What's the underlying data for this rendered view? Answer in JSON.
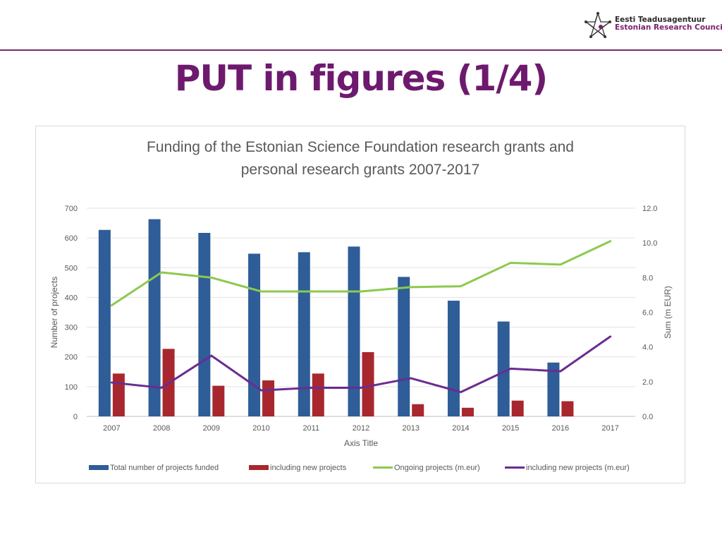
{
  "logo": {
    "line1": "Eesti Teadusagentuur",
    "line2": "Estonian Research Council"
  },
  "page_title": "PUT in figures (1/4)",
  "chart_data": {
    "type": "bar",
    "title": "Funding of the Estonian Science Foundation research grants and personal research grants 2007-2017",
    "title_lines": [
      "Funding of the Estonian Science Foundation research grants and",
      "personal research grants 2007-2017"
    ],
    "xlabel": "Axis Title",
    "ylabel": "Number of projects",
    "y2label": "Sum (m EUR)",
    "categories": [
      "2007",
      "2008",
      "2009",
      "2010",
      "2011",
      "2012",
      "2013",
      "2014",
      "2015",
      "2016",
      "2017"
    ],
    "ylim": [
      0,
      700
    ],
    "y_ticks": [
      "0",
      "100",
      "200",
      "300",
      "400",
      "500",
      "600",
      "700"
    ],
    "y2lim": [
      0,
      12
    ],
    "y2_ticks": [
      "0.0",
      "2.0",
      "4.0",
      "6.0",
      "8.0",
      "10.0",
      "12.0"
    ],
    "grid": true,
    "legend_position": "bottom",
    "series": [
      {
        "name": "Total number of projects funded",
        "kind": "bar",
        "axis": "left",
        "color": "#2e5d98",
        "values": [
          627,
          663,
          617,
          547,
          552,
          571,
          469,
          389,
          319,
          181,
          null
        ]
      },
      {
        "name": "including new projects",
        "kind": "bar",
        "axis": "left",
        "color": "#a8272e",
        "values": [
          144,
          227,
          103,
          121,
          144,
          216,
          41,
          29,
          53,
          51,
          null
        ]
      },
      {
        "name": "Ongoing projects (m.eur)",
        "kind": "line",
        "axis": "right",
        "color": "#8cc94f",
        "values": [
          6.4,
          8.3,
          8.0,
          7.2,
          7.2,
          7.2,
          7.45,
          7.5,
          8.85,
          8.75,
          10.1
        ]
      },
      {
        "name": "including new projects (m.eur)",
        "kind": "line",
        "axis": "right",
        "color": "#6a2c91",
        "values": [
          1.95,
          1.65,
          3.5,
          1.5,
          1.65,
          1.65,
          2.2,
          1.4,
          2.75,
          2.6,
          4.6
        ]
      }
    ]
  }
}
